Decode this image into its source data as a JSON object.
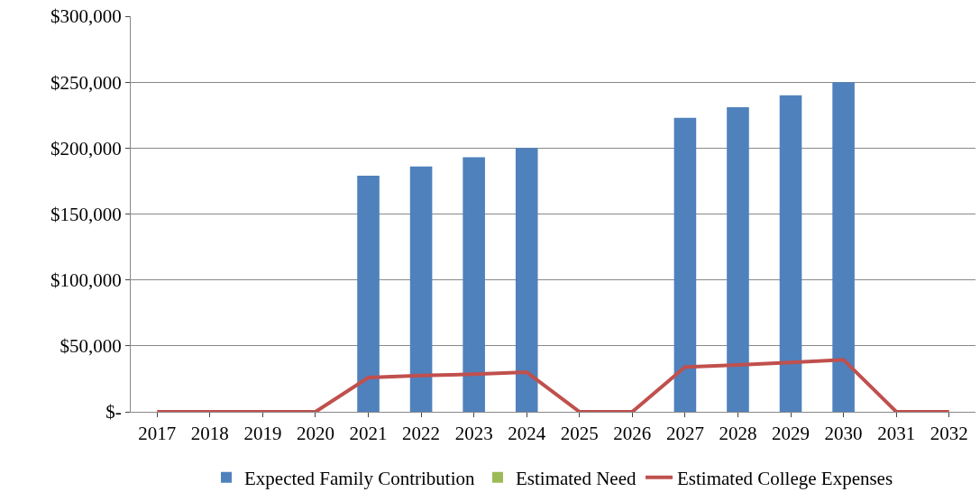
{
  "chart_data": {
    "type": "bar",
    "categories": [
      "2017",
      "2018",
      "2019",
      "2020",
      "2021",
      "2022",
      "2023",
      "2024",
      "2025",
      "2026",
      "2027",
      "2028",
      "2029",
      "2030",
      "2031",
      "2032"
    ],
    "series": [
      {
        "name": "Expected Family Contribution",
        "color": "#4f81bd",
        "values": [
          0,
          0,
          0,
          0,
          179000,
          186000,
          193000,
          200000,
          0,
          0,
          223000,
          231000,
          240000,
          250000,
          0,
          0
        ]
      },
      {
        "name": "Estimated Need",
        "color": "#9bbb59",
        "values": [
          0,
          0,
          0,
          0,
          0,
          0,
          0,
          0,
          0,
          0,
          0,
          0,
          0,
          0,
          0,
          0
        ]
      },
      {
        "name": "Estimated College Expenses",
        "type": "line",
        "color": "#c0504d",
        "values": [
          0,
          0,
          0,
          0,
          26000,
          27500,
          28500,
          30000,
          0,
          0,
          34000,
          35500,
          37500,
          39500,
          0,
          0
        ]
      }
    ],
    "ylim": [
      0,
      300000
    ],
    "yticks": [
      {
        "value": 0,
        "label": "$-"
      },
      {
        "value": 50000,
        "label": "$50,000"
      },
      {
        "value": 100000,
        "label": "$100,000"
      },
      {
        "value": 150000,
        "label": "$150,000"
      },
      {
        "value": 200000,
        "label": "$200,000"
      },
      {
        "value": 250000,
        "label": "$250,000"
      },
      {
        "value": 300000,
        "label": "$300,000"
      }
    ],
    "grid": "y",
    "legend": "bottom"
  }
}
